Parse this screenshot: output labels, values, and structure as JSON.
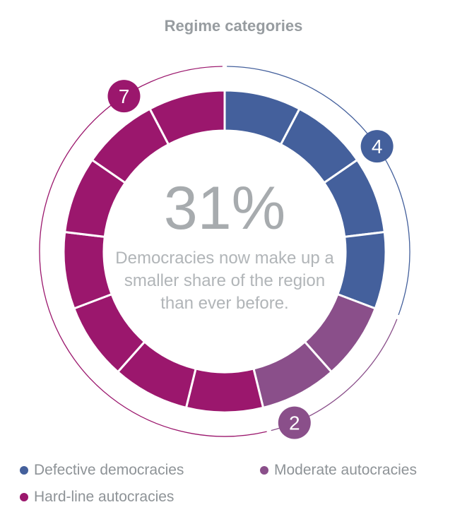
{
  "chart_data": {
    "type": "pie",
    "variant": "segmented-donut",
    "title": "Regime categories",
    "center_value": "31%",
    "center_text": [
      "Democracies now make up a",
      "smaller share of the region",
      "than ever before."
    ],
    "series": [
      {
        "name": "Defective democracies",
        "value": 4,
        "color": "#44609c"
      },
      {
        "name": "Moderate autocracies",
        "value": 2,
        "color": "#8a4f8a"
      },
      {
        "name": "Hard-line autocracies",
        "value": 7,
        "color": "#9b176d"
      }
    ],
    "total": 13,
    "legend": "bottom"
  },
  "colors": {
    "text_gray": "#979ca0",
    "background": "#ffffff"
  }
}
